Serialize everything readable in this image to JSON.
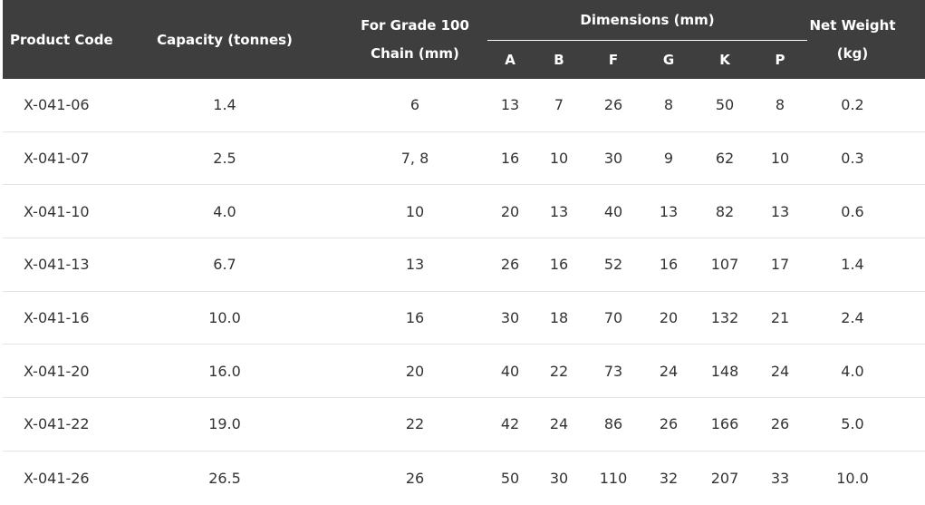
{
  "header": {
    "product_code": "Product Code",
    "capacity": "Capacity  (tonnes)",
    "grade_line1": "For  Grade 100",
    "grade_line2": "Chain (mm)",
    "dimensions": "Dimensions (mm)",
    "dims": [
      "A",
      "B",
      "F",
      "G",
      "K",
      "P"
    ],
    "weight_line1": "Net  Weight",
    "weight_line2": "(kg)"
  },
  "rows": [
    {
      "code": "X-041-06",
      "capacity": "1.4",
      "chain": "6",
      "A": "13",
      "B": "7",
      "F": "26",
      "G": "8",
      "K": "50",
      "P": "8",
      "weight": "0.2"
    },
    {
      "code": "X-041-07",
      "capacity": "2.5",
      "chain": "7, 8",
      "A": "16",
      "B": "10",
      "F": "30",
      "G": "9",
      "K": "62",
      "P": "10",
      "weight": "0.3"
    },
    {
      "code": "X-041-10",
      "capacity": "4.0",
      "chain": "10",
      "A": "20",
      "B": "13",
      "F": "40",
      "G": "13",
      "K": "82",
      "P": "13",
      "weight": "0.6"
    },
    {
      "code": "X-041-13",
      "capacity": "6.7",
      "chain": "13",
      "A": "26",
      "B": "16",
      "F": "52",
      "G": "16",
      "K": "107",
      "P": "17",
      "weight": "1.4"
    },
    {
      "code": "X-041-16",
      "capacity": "10.0",
      "chain": "16",
      "A": "30",
      "B": "18",
      "F": "70",
      "G": "20",
      "K": "132",
      "P": "21",
      "weight": "2.4"
    },
    {
      "code": "X-041-20",
      "capacity": "16.0",
      "chain": "20",
      "A": "40",
      "B": "22",
      "F": "73",
      "G": "24",
      "K": "148",
      "P": "24",
      "weight": "4.0"
    },
    {
      "code": "X-041-22",
      "capacity": "19.0",
      "chain": "22",
      "A": "42",
      "B": "24",
      "F": "86",
      "G": "26",
      "K": "166",
      "P": "26",
      "weight": "5.0"
    },
    {
      "code": "X-041-26",
      "capacity": "26.5",
      "chain": "26",
      "A": "50",
      "B": "30",
      "F": "110",
      "G": "32",
      "K": "207",
      "P": "33",
      "weight": "10.0"
    }
  ]
}
